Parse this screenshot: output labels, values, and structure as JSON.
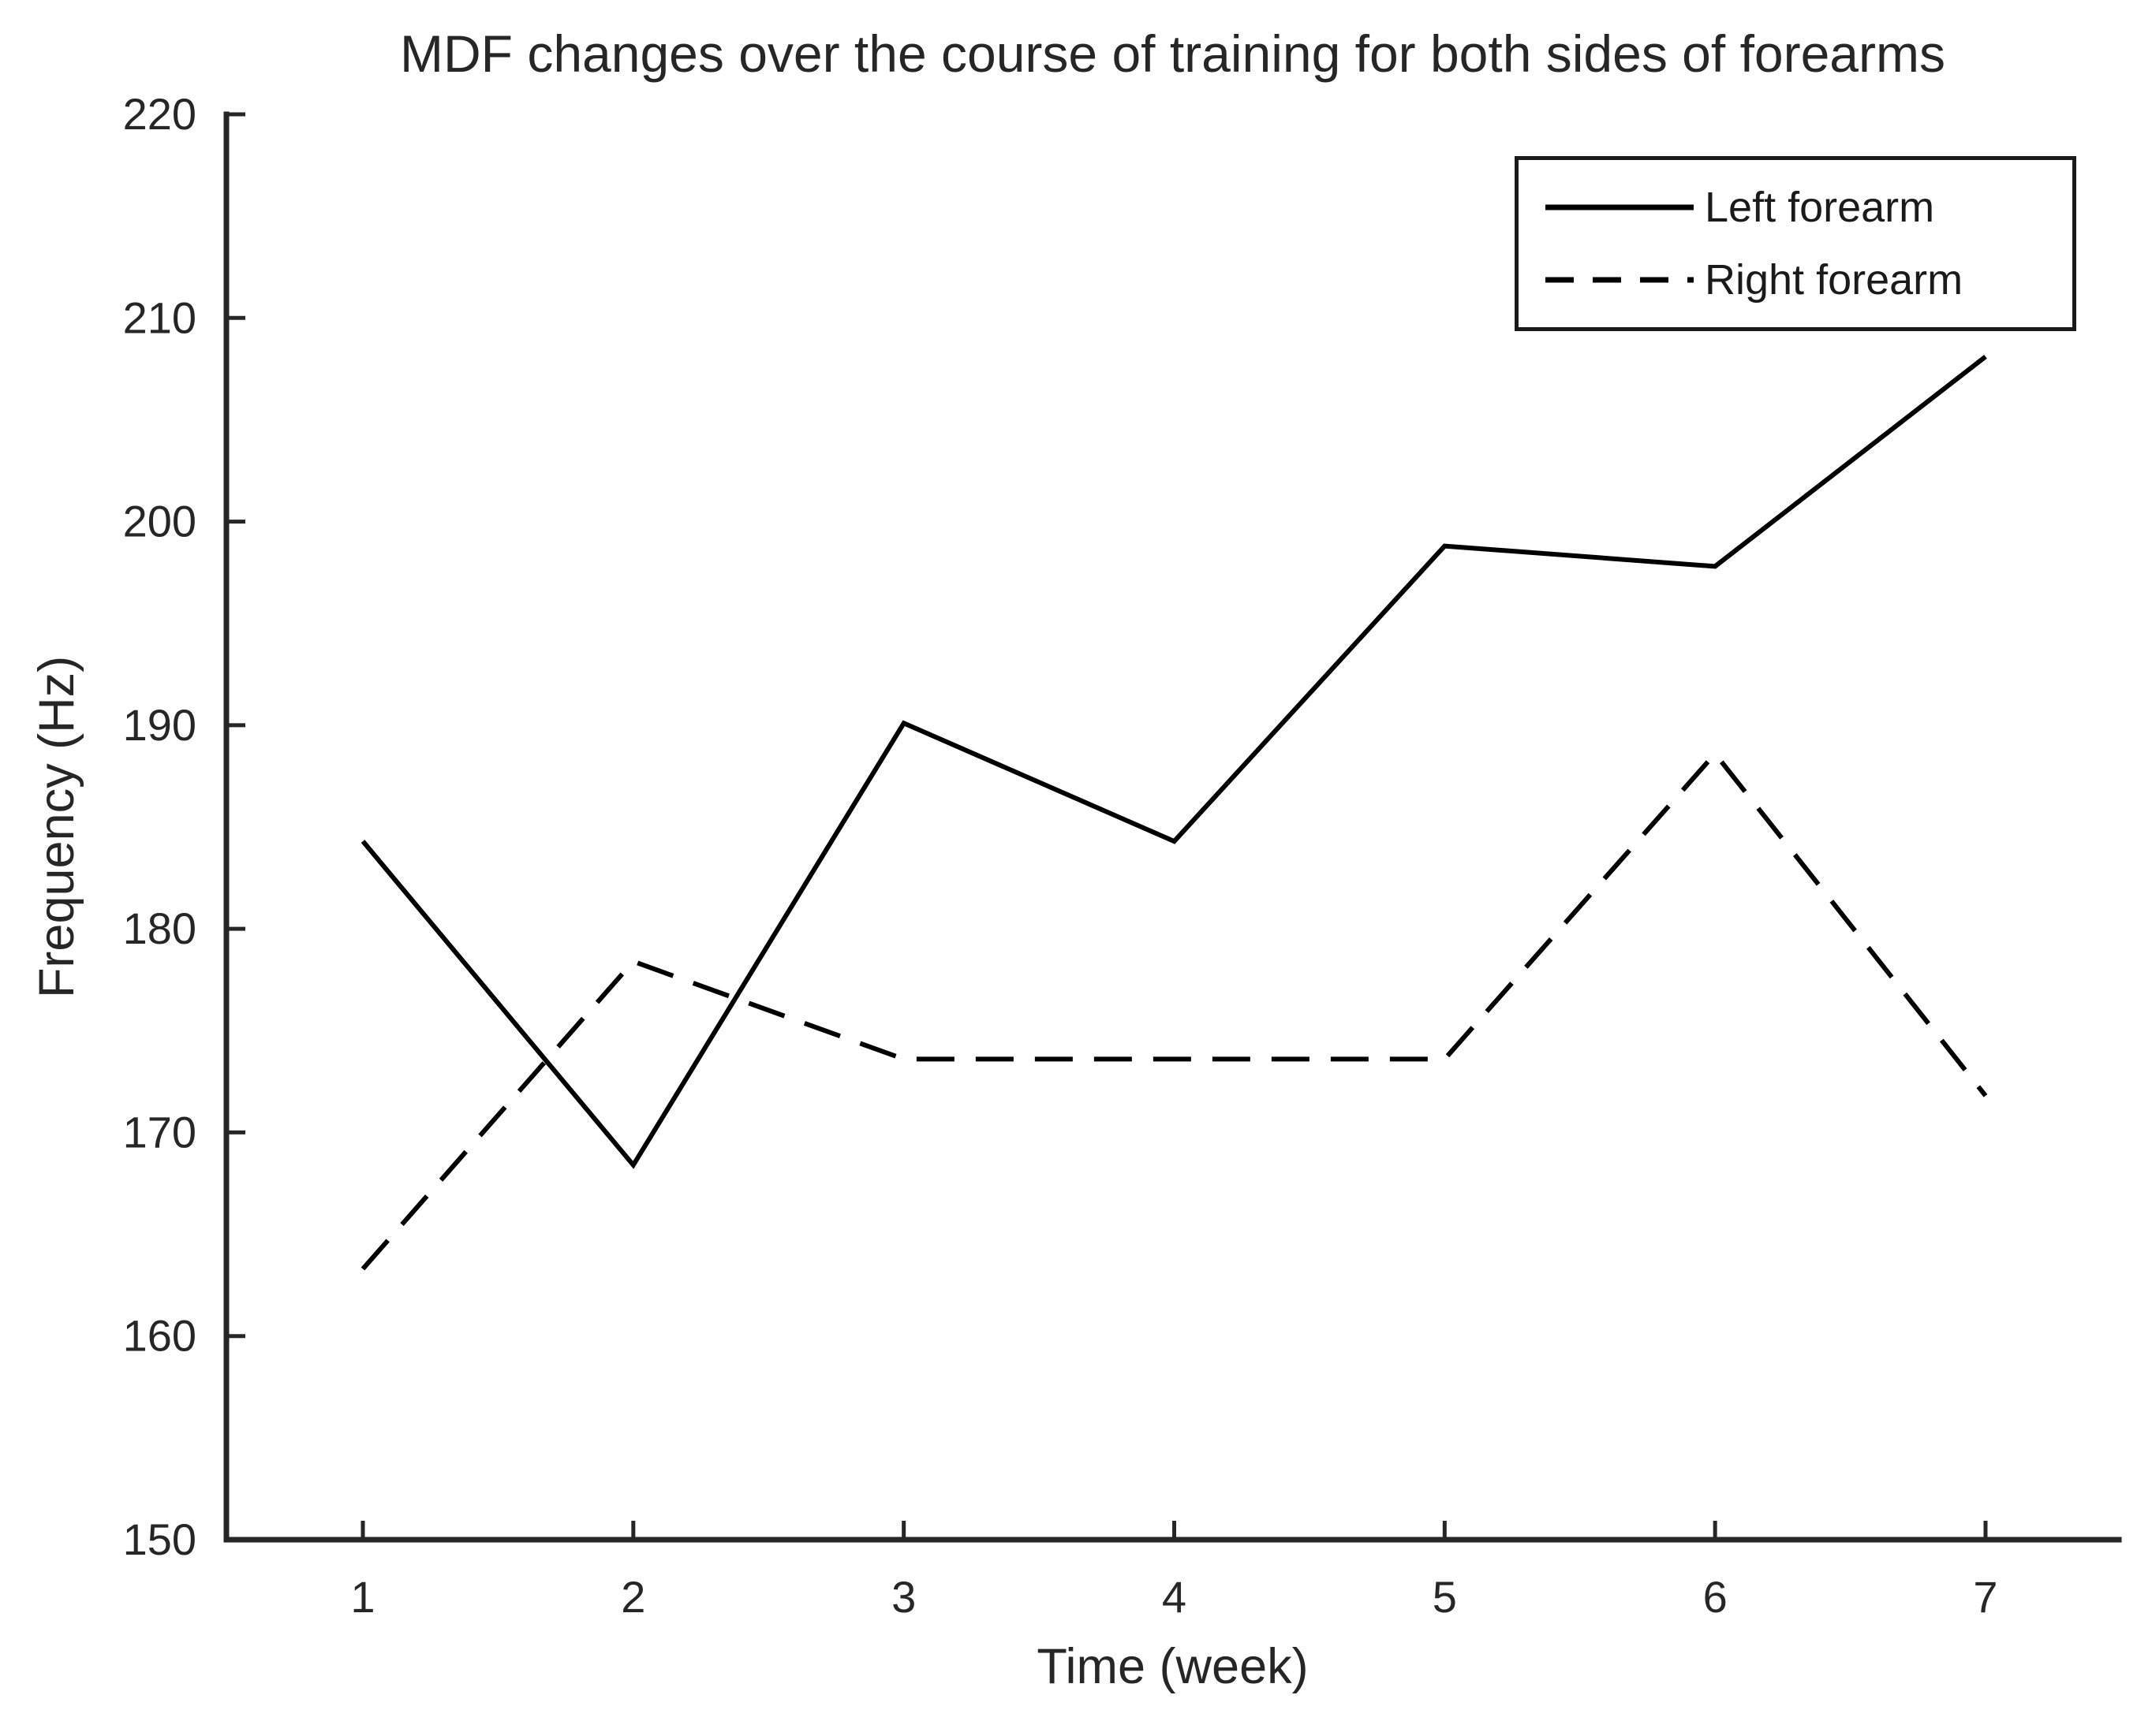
{
  "chart_data": {
    "type": "line",
    "title": "MDF changes over the course of training for both sides of forearms",
    "xlabel": "Time (week)",
    "ylabel": "Frequency (Hz)",
    "x": [
      1,
      2,
      3,
      4,
      5,
      6,
      7
    ],
    "xticks": [
      "1",
      "2",
      "3",
      "4",
      "5",
      "6",
      "7"
    ],
    "yticks": [
      "150",
      "160",
      "170",
      "180",
      "190",
      "200",
      "210",
      "220"
    ],
    "xlim": [
      0.5,
      7.5
    ],
    "ylim": [
      150,
      220
    ],
    "grid": false,
    "legend_position": "top-right",
    "axis_color": "#262626",
    "background_color": "#ffffff",
    "series": [
      {
        "name": "Left forearm",
        "style": "solid",
        "color": "#000000",
        "values": [
          184.3,
          168.4,
          190.1,
          184.3,
          198.8,
          197.8,
          208.1
        ]
      },
      {
        "name": "Right forearm",
        "style": "dashed",
        "color": "#000000",
        "values": [
          163.3,
          178.4,
          173.6,
          173.6,
          173.6,
          188.6,
          171.8
        ]
      }
    ]
  }
}
